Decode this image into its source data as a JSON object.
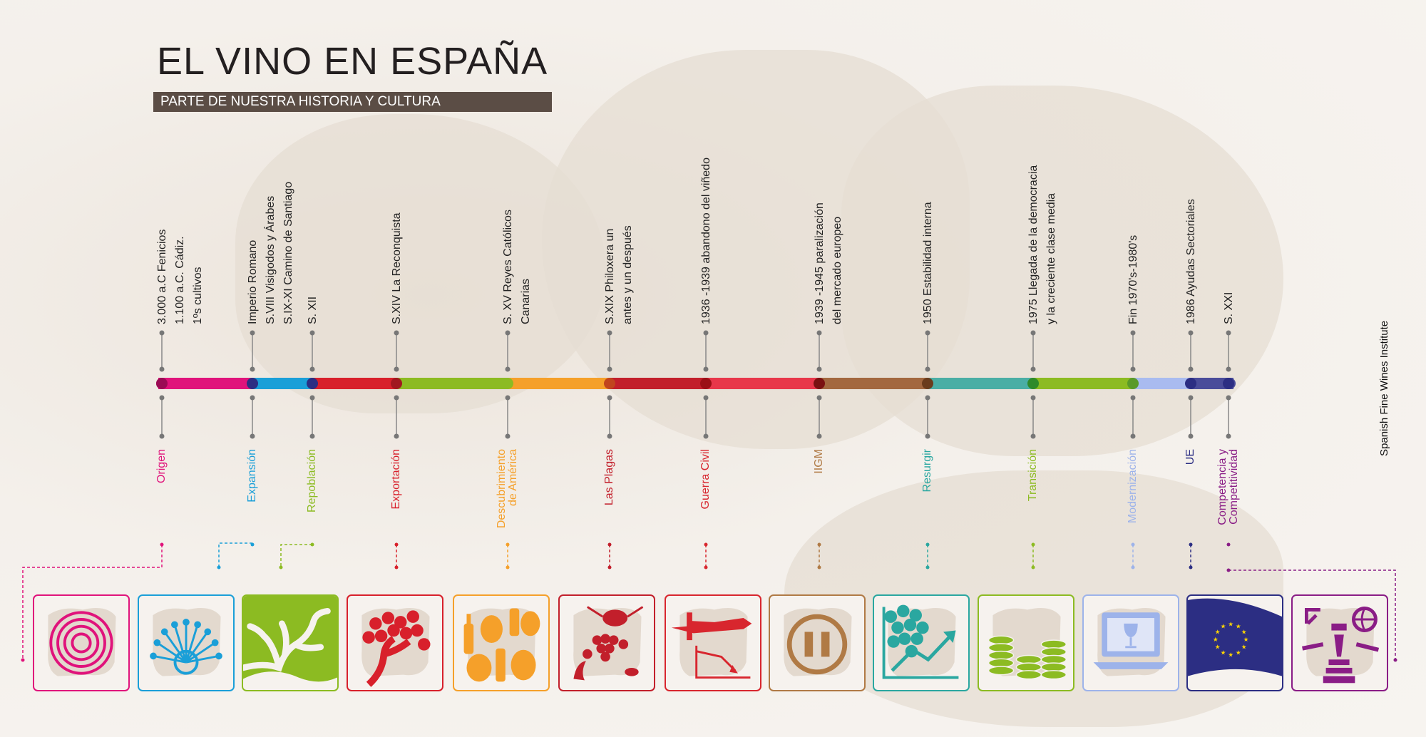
{
  "title": "EL VINO EN ESPAÑA",
  "subtitle": "PARTE DE NUESTRA HISTORIA Y CULTURA",
  "credit": "Spanish Fine Wines Institute",
  "colors": {
    "origen": "#e0137b",
    "expansion": "#1a9fd8",
    "repoblacion": "#8cbb22",
    "exportacion": "#d8202b",
    "descubrimiento": "#f5a02a",
    "plagas": "#c21f2b",
    "guerra": "#d8262e",
    "iigm": "#b07a45",
    "resurgir": "#2aa7a0",
    "transicion": "#8cbb22",
    "modernizacion": "#9db3ea",
    "ue": "#2c2e83",
    "competencia": "#8a1d86",
    "tile_bg": "#e3d9ce"
  },
  "events": [
    {
      "lines": [
        "3.000 a.C Fenicios",
        "1.100 a.C. Cádiz.",
        "1ºs cultivos"
      ]
    },
    {
      "lines": [
        "Imperio Romano",
        "S.VIII Visigodos y Árabes",
        "S.IX-XI Camino de Santiago"
      ]
    },
    {
      "lines": [
        "S. XII"
      ]
    },
    {
      "lines": [
        "S.XIV La Reconquista"
      ]
    },
    {
      "lines": [
        "S. XV Reyes Católicos",
        "Canarias"
      ]
    },
    {
      "lines": [
        "S.XIX Philoxera un",
        "antes y un después"
      ]
    },
    {
      "lines": [
        "1936 -1939 abandono del viñedo"
      ]
    },
    {
      "lines": [
        "1939 -1945 paralización",
        "del mercado europeo"
      ]
    },
    {
      "lines": [
        "1950 Estabilidad interna"
      ]
    },
    {
      "lines": [
        "1975 Llegada de la democracia",
        "y la creciente clase media"
      ]
    },
    {
      "lines": [
        "Fin 1970's-1980's"
      ]
    },
    {
      "lines": [
        "1986 Ayudas Sectoriales"
      ]
    },
    {
      "lines": [
        "S. XXI"
      ]
    }
  ],
  "eras": [
    {
      "lines": [
        "Origen"
      ],
      "color": "#e0137b",
      "icon": "target-icon"
    },
    {
      "lines": [
        "Expansión"
      ],
      "color": "#1a9fd8",
      "icon": "roads-wheel-icon"
    },
    {
      "lines": [
        "Repoblación"
      ],
      "color": "#8cbb22",
      "icon": "vine-trunk-icon"
    },
    {
      "lines": [
        "Exportación"
      ],
      "color": "#d8202b",
      "icon": "grapevine-tree-icon"
    },
    {
      "lines": [
        "Descubrimiento",
        "de América"
      ],
      "color": "#f5a02a",
      "icon": "bottles-barrels-icon"
    },
    {
      "lines": [
        "Las Plagas"
      ],
      "color": "#c21f2b",
      "icon": "phylloxera-bug-icon"
    },
    {
      "lines": [
        "Guerra Civil"
      ],
      "color": "#d8262e",
      "icon": "warplane-decline-icon"
    },
    {
      "lines": [
        "IIGM"
      ],
      "color": "#b07a45",
      "icon": "pause-icon"
    },
    {
      "lines": [
        "Resurgir"
      ],
      "color": "#2aa7a0",
      "icon": "grapes-growth-chart-icon"
    },
    {
      "lines": [
        "Transición"
      ],
      "color": "#8cbb22",
      "icon": "coin-stacks-icon"
    },
    {
      "lines": [
        "Modernización"
      ],
      "color": "#9db3ea",
      "icon": "laptop-wineglass-icon"
    },
    {
      "lines": [
        "UE"
      ],
      "color": "#2c2e83",
      "icon": "eu-flag-icon"
    },
    {
      "lines": [
        "Competencia y",
        "Competitividad"
      ],
      "color": "#8a1d86",
      "icon": "research-globe-icon"
    }
  ]
}
